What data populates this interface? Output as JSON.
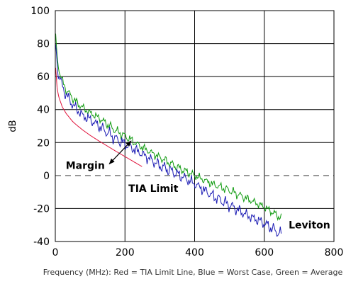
{
  "chart_data": {
    "type": "line",
    "xlabel": "",
    "ylabel": "dB",
    "caption": "Frequency (MHz): Red = TIA Limit Line, Blue = Worst Case, Green = Average",
    "xlim": [
      0,
      800
    ],
    "ylim": [
      -40,
      100
    ],
    "x_ticks": [
      0,
      200,
      400,
      600,
      800
    ],
    "y_ticks": [
      -40,
      -20,
      0,
      20,
      40,
      60,
      80,
      100
    ],
    "grid": true,
    "reference_line": {
      "y": 0,
      "style": "dashed"
    },
    "series": [
      {
        "name": "TIA Limit",
        "color": "#e0143c",
        "x": [
          1,
          5,
          10,
          20,
          31.25,
          50,
          62.5,
          80,
          100,
          125,
          150,
          175,
          200,
          225,
          250
        ],
        "y": [
          65.3,
          53.3,
          47.6,
          41.6,
          37.6,
          32.7,
          30.4,
          27.4,
          24.4,
          21.0,
          17.8,
          14.6,
          11.5,
          8.4,
          5.3
        ]
      },
      {
        "name": "Average",
        "color": "#109b10",
        "x": [
          1,
          5,
          10,
          20,
          31.25,
          50,
          62.5,
          80,
          100,
          125,
          150,
          175,
          200,
          250,
          300,
          350,
          400,
          450,
          500,
          550,
          600,
          650
        ],
        "y": [
          84,
          72,
          65,
          57,
          52,
          47,
          44,
          41,
          38,
          35,
          31,
          27,
          24,
          17,
          11,
          5,
          0,
          -5,
          -9,
          -14,
          -19,
          -26
        ]
      },
      {
        "name": "Worst Case",
        "color": "#1c1cb4",
        "x": [
          1,
          5,
          10,
          20,
          31.25,
          50,
          62.5,
          80,
          100,
          125,
          150,
          175,
          200,
          250,
          300,
          350,
          400,
          450,
          500,
          550,
          600,
          650
        ],
        "y": [
          80,
          68,
          61,
          54,
          49,
          43,
          40,
          36,
          34,
          30,
          26,
          22,
          19,
          13,
          6,
          1,
          -5,
          -12,
          -18,
          -24,
          -29,
          -36
        ]
      }
    ],
    "annotations": [
      {
        "text": "Margin",
        "x": 30,
        "y": 4
      },
      {
        "text": "TIA Limit",
        "x": 210,
        "y": -10
      },
      {
        "text": "Leviton",
        "x": 670,
        "y": -32
      }
    ]
  }
}
